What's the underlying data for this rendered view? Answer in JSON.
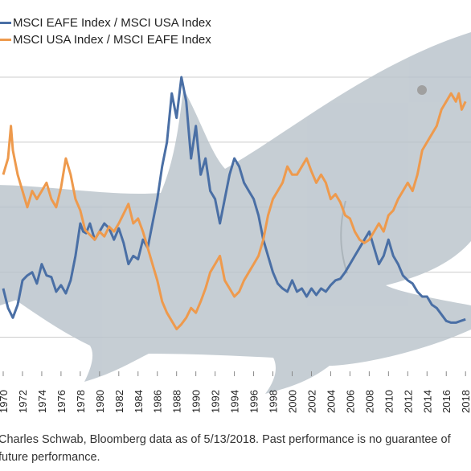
{
  "colors": {
    "eafe_usa": "#4a6fa5",
    "usa_eafe": "#ee9a4d",
    "grid": "#cccccc",
    "shark": "#b9c3cb"
  },
  "legend": [
    {
      "label": "MSCI EAFE Index / MSCI USA Index",
      "color": "#4a6fa5"
    },
    {
      "label": "MSCI USA Index / MSCI EAFE Index",
      "color": "#ee9a4d"
    }
  ],
  "footnote": "Charles Schwab, Bloomberg data as of 5/13/2018.  Past performance is no guarantee of future performance.",
  "chart_data": {
    "type": "line",
    "title": "",
    "xlabel": "",
    "ylabel": "",
    "xlim": [
      1970,
      2018.4
    ],
    "ylim": [
      0.4,
      2.2
    ],
    "grid": "horizontal",
    "legend_position": "top-left",
    "x_ticks": [
      "1970",
      "1972",
      "1974",
      "1976",
      "1978",
      "1980",
      "1982",
      "1984",
      "1986",
      "1988",
      "1990",
      "1992",
      "1994",
      "1996",
      "1998",
      "2000",
      "2002",
      "2004",
      "2006",
      "2008",
      "2010",
      "2012",
      "2014",
      "2016",
      "2018"
    ],
    "series": [
      {
        "name": "MSCI EAFE Index / MSCI USA Index",
        "points": [
          [
            1970,
            0.9
          ],
          [
            1970.5,
            0.78
          ],
          [
            1971,
            0.72
          ],
          [
            1971.5,
            0.8
          ],
          [
            1972,
            0.95
          ],
          [
            1972.5,
            0.98
          ],
          [
            1973,
            1.0
          ],
          [
            1973.5,
            0.93
          ],
          [
            1974,
            1.05
          ],
          [
            1974.5,
            0.98
          ],
          [
            1975,
            0.97
          ],
          [
            1975.5,
            0.88
          ],
          [
            1976,
            0.92
          ],
          [
            1976.5,
            0.87
          ],
          [
            1977,
            0.95
          ],
          [
            1977.5,
            1.1
          ],
          [
            1978,
            1.3
          ],
          [
            1978.3,
            1.25
          ],
          [
            1978.6,
            1.24
          ],
          [
            1979,
            1.3
          ],
          [
            1979.5,
            1.2
          ],
          [
            1980,
            1.25
          ],
          [
            1980.5,
            1.3
          ],
          [
            1981,
            1.27
          ],
          [
            1981.5,
            1.2
          ],
          [
            1982,
            1.27
          ],
          [
            1982.5,
            1.18
          ],
          [
            1983,
            1.05
          ],
          [
            1983.5,
            1.1
          ],
          [
            1984,
            1.08
          ],
          [
            1984.5,
            1.2
          ],
          [
            1985,
            1.15
          ],
          [
            1985.5,
            1.3
          ],
          [
            1986,
            1.45
          ],
          [
            1986.5,
            1.65
          ],
          [
            1987,
            1.8
          ],
          [
            1987.5,
            2.1
          ],
          [
            1988,
            1.95
          ],
          [
            1988.5,
            2.2
          ],
          [
            1989,
            2.05
          ],
          [
            1989.5,
            1.7
          ],
          [
            1990,
            1.9
          ],
          [
            1990.5,
            1.6
          ],
          [
            1991,
            1.7
          ],
          [
            1991.5,
            1.5
          ],
          [
            1992,
            1.45
          ],
          [
            1992.5,
            1.3
          ],
          [
            1993,
            1.45
          ],
          [
            1993.5,
            1.6
          ],
          [
            1994,
            1.7
          ],
          [
            1994.5,
            1.65
          ],
          [
            1995,
            1.55
          ],
          [
            1995.5,
            1.5
          ],
          [
            1996,
            1.45
          ],
          [
            1996.5,
            1.35
          ],
          [
            1997,
            1.2
          ],
          [
            1997.5,
            1.1
          ],
          [
            1998,
            1.0
          ],
          [
            1998.5,
            0.93
          ],
          [
            1999,
            0.9
          ],
          [
            1999.5,
            0.88
          ],
          [
            2000,
            0.95
          ],
          [
            2000.5,
            0.88
          ],
          [
            2001,
            0.9
          ],
          [
            2001.5,
            0.85
          ],
          [
            2002,
            0.9
          ],
          [
            2002.5,
            0.86
          ],
          [
            2003,
            0.9
          ],
          [
            2003.5,
            0.88
          ],
          [
            2004,
            0.92
          ],
          [
            2004.5,
            0.95
          ],
          [
            2005,
            0.96
          ],
          [
            2005.5,
            1.0
          ],
          [
            2006,
            1.05
          ],
          [
            2006.5,
            1.1
          ],
          [
            2007,
            1.15
          ],
          [
            2007.5,
            1.2
          ],
          [
            2008,
            1.25
          ],
          [
            2008.5,
            1.15
          ],
          [
            2009,
            1.05
          ],
          [
            2009.5,
            1.1
          ],
          [
            2010,
            1.2
          ],
          [
            2010.5,
            1.1
          ],
          [
            2011,
            1.05
          ],
          [
            2011.5,
            0.98
          ],
          [
            2012,
            0.95
          ],
          [
            2012.5,
            0.93
          ],
          [
            2013,
            0.88
          ],
          [
            2013.5,
            0.85
          ],
          [
            2014,
            0.85
          ],
          [
            2014.5,
            0.8
          ],
          [
            2015,
            0.78
          ],
          [
            2015.5,
            0.74
          ],
          [
            2016,
            0.7
          ],
          [
            2016.5,
            0.69
          ],
          [
            2017,
            0.69
          ],
          [
            2017.5,
            0.7
          ],
          [
            2018,
            0.71
          ]
        ]
      },
      {
        "name": "MSCI USA Index / MSCI EAFE Index",
        "points": [
          [
            1970,
            1.6
          ],
          [
            1970.5,
            1.7
          ],
          [
            1970.8,
            1.9
          ],
          [
            1971,
            1.75
          ],
          [
            1971.5,
            1.6
          ],
          [
            1972,
            1.5
          ],
          [
            1972.5,
            1.4
          ],
          [
            1973,
            1.5
          ],
          [
            1973.5,
            1.45
          ],
          [
            1974,
            1.5
          ],
          [
            1974.5,
            1.55
          ],
          [
            1975,
            1.45
          ],
          [
            1975.5,
            1.4
          ],
          [
            1976,
            1.52
          ],
          [
            1976.5,
            1.7
          ],
          [
            1977,
            1.6
          ],
          [
            1977.5,
            1.45
          ],
          [
            1978,
            1.38
          ],
          [
            1978.5,
            1.26
          ],
          [
            1979,
            1.23
          ],
          [
            1979.5,
            1.2
          ],
          [
            1980,
            1.25
          ],
          [
            1980.5,
            1.22
          ],
          [
            1981,
            1.28
          ],
          [
            1981.5,
            1.25
          ],
          [
            1982,
            1.3
          ],
          [
            1982.5,
            1.36
          ],
          [
            1983,
            1.42
          ],
          [
            1983.5,
            1.3
          ],
          [
            1984,
            1.33
          ],
          [
            1984.5,
            1.25
          ],
          [
            1985,
            1.15
          ],
          [
            1985.5,
            1.05
          ],
          [
            1986,
            0.95
          ],
          [
            1986.5,
            0.82
          ],
          [
            1987,
            0.75
          ],
          [
            1987.5,
            0.7
          ],
          [
            1988,
            0.65
          ],
          [
            1988.5,
            0.68
          ],
          [
            1989,
            0.72
          ],
          [
            1989.5,
            0.78
          ],
          [
            1990,
            0.75
          ],
          [
            1990.5,
            0.82
          ],
          [
            1991,
            0.9
          ],
          [
            1991.5,
            1.0
          ],
          [
            1992,
            1.05
          ],
          [
            1992.5,
            1.1
          ],
          [
            1993,
            0.95
          ],
          [
            1993.5,
            0.9
          ],
          [
            1994,
            0.85
          ],
          [
            1994.5,
            0.88
          ],
          [
            1995,
            0.95
          ],
          [
            1995.5,
            1.0
          ],
          [
            1996,
            1.05
          ],
          [
            1996.5,
            1.1
          ],
          [
            1997,
            1.2
          ],
          [
            1997.5,
            1.35
          ],
          [
            1998,
            1.45
          ],
          [
            1998.5,
            1.5
          ],
          [
            1999,
            1.55
          ],
          [
            1999.5,
            1.65
          ],
          [
            2000,
            1.6
          ],
          [
            2000.5,
            1.6
          ],
          [
            2001,
            1.65
          ],
          [
            2001.5,
            1.7
          ],
          [
            2002,
            1.62
          ],
          [
            2002.5,
            1.55
          ],
          [
            2003,
            1.6
          ],
          [
            2003.5,
            1.55
          ],
          [
            2004,
            1.45
          ],
          [
            2004.5,
            1.48
          ],
          [
            2005,
            1.43
          ],
          [
            2005.5,
            1.35
          ],
          [
            2006,
            1.33
          ],
          [
            2006.5,
            1.25
          ],
          [
            2007,
            1.2
          ],
          [
            2007.5,
            1.18
          ],
          [
            2008,
            1.2
          ],
          [
            2008.5,
            1.25
          ],
          [
            2009,
            1.3
          ],
          [
            2009.5,
            1.25
          ],
          [
            2010,
            1.35
          ],
          [
            2010.5,
            1.38
          ],
          [
            2011,
            1.45
          ],
          [
            2011.5,
            1.5
          ],
          [
            2012,
            1.55
          ],
          [
            2012.5,
            1.5
          ],
          [
            2013,
            1.6
          ],
          [
            2013.5,
            1.75
          ],
          [
            2014,
            1.8
          ],
          [
            2014.5,
            1.85
          ],
          [
            2015,
            1.9
          ],
          [
            2015.5,
            2.0
          ],
          [
            2016,
            2.05
          ],
          [
            2016.5,
            2.1
          ],
          [
            2017,
            2.05
          ],
          [
            2017.3,
            2.1
          ],
          [
            2017.6,
            2.0
          ],
          [
            2018,
            2.05
          ]
        ]
      }
    ]
  }
}
